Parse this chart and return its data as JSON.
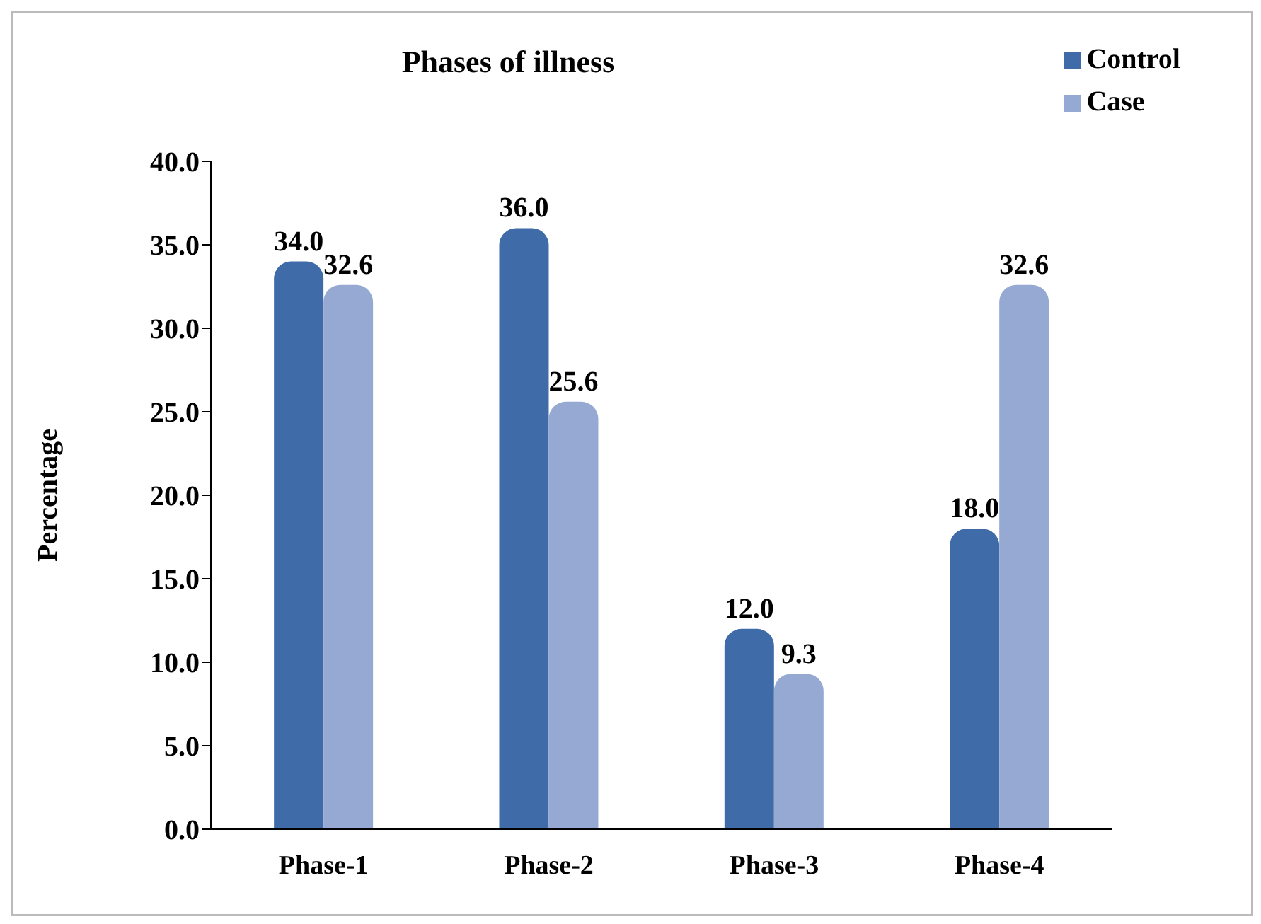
{
  "chart_data": {
    "type": "bar",
    "title": "Phases of illness",
    "ylabel": "Percentage",
    "categories": [
      "Phase-1",
      "Phase-2",
      "Phase-3",
      "Phase-4"
    ],
    "series": [
      {
        "name": "Control",
        "color": "#3f6ca8",
        "values": [
          34.0,
          36.0,
          12.0,
          18.0
        ],
        "value_labels": [
          "34.0",
          "36.0",
          "12.0",
          "18.0"
        ]
      },
      {
        "name": "Case",
        "color": "#95a9d3",
        "values": [
          32.6,
          25.6,
          9.3,
          32.6
        ],
        "value_labels": [
          "32.6",
          "25.6",
          "9.3",
          "32.6"
        ]
      }
    ],
    "ylim": [
      0,
      40
    ],
    "yticks": [
      {
        "value": 0,
        "label": "0.0"
      },
      {
        "value": 5,
        "label": "5.0"
      },
      {
        "value": 10,
        "label": "10.0"
      },
      {
        "value": 15,
        "label": "15.0"
      },
      {
        "value": 20,
        "label": "20.0"
      },
      {
        "value": 25,
        "label": "25.0"
      },
      {
        "value": 30,
        "label": "30.0"
      },
      {
        "value": 35,
        "label": "35.0"
      },
      {
        "value": 40,
        "label": "40.0"
      }
    ],
    "grid": false,
    "legend": "top right"
  }
}
